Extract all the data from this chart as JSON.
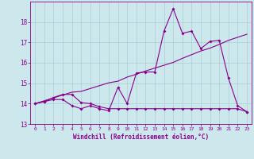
{
  "xlabel": "Windchill (Refroidissement éolien,°C)",
  "background_color": "#cce8ed",
  "grid_color": "#aacdd4",
  "line_color": "#880088",
  "xlim": [
    -0.5,
    23.5
  ],
  "ylim": [
    13,
    19
  ],
  "yticks": [
    13,
    14,
    15,
    16,
    17,
    18
  ],
  "xticks": [
    0,
    1,
    2,
    3,
    4,
    5,
    6,
    7,
    8,
    9,
    10,
    11,
    12,
    13,
    14,
    15,
    16,
    17,
    18,
    19,
    20,
    21,
    22,
    23
  ],
  "x_data": [
    0,
    1,
    2,
    3,
    4,
    5,
    6,
    7,
    8,
    9,
    10,
    11,
    12,
    13,
    14,
    15,
    16,
    17,
    18,
    19,
    20,
    21,
    22,
    23
  ],
  "line1_y": [
    14.0,
    14.1,
    14.2,
    14.2,
    13.9,
    13.75,
    13.9,
    13.75,
    13.65,
    14.8,
    14.0,
    15.5,
    15.55,
    15.55,
    17.55,
    18.65,
    17.45,
    17.55,
    16.7,
    17.05,
    17.1,
    15.25,
    13.9,
    13.6
  ],
  "line2_y": [
    14.0,
    14.1,
    14.3,
    14.45,
    14.45,
    14.05,
    14.0,
    13.85,
    13.75,
    13.75,
    13.75,
    13.75,
    13.75,
    13.75,
    13.75,
    13.75,
    13.75,
    13.75,
    13.75,
    13.75,
    13.75,
    13.75,
    13.75,
    13.6
  ],
  "line3_y": [
    14.0,
    14.14,
    14.28,
    14.42,
    14.56,
    14.6,
    14.74,
    14.88,
    15.02,
    15.1,
    15.3,
    15.44,
    15.6,
    15.74,
    15.88,
    16.02,
    16.22,
    16.4,
    16.58,
    16.72,
    16.9,
    17.1,
    17.25,
    17.4
  ]
}
